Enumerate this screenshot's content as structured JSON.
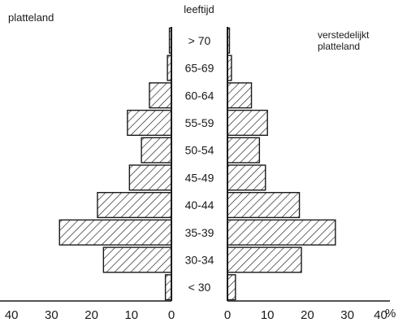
{
  "chart_data": {
    "type": "bar",
    "layout": "population-pyramid",
    "title": "",
    "left_panel_label": "platteland",
    "center_label": "leeftijd",
    "right_panel_label": [
      "verstedelijkt",
      "platteland"
    ],
    "unit_label": "%",
    "categories": [
      "> 70",
      "65-69",
      "60-64",
      "55-59",
      "50-54",
      "45-49",
      "40-44",
      "35-39",
      "30-34",
      "< 30"
    ],
    "series": [
      {
        "name": "platteland",
        "side": "left",
        "values": [
          0.5,
          1,
          5.5,
          11,
          7.5,
          10.5,
          18.5,
          28,
          17,
          1.5
        ]
      },
      {
        "name": "verstedelijkt platteland",
        "side": "right",
        "values": [
          0.5,
          1,
          6,
          10,
          8,
          9.5,
          18,
          27,
          18.5,
          2
        ]
      }
    ],
    "left_axis": {
      "ticks": [
        40,
        30,
        20,
        10,
        0
      ],
      "range": [
        0,
        40
      ]
    },
    "right_axis": {
      "ticks": [
        0,
        10,
        20,
        30,
        40
      ],
      "range": [
        0,
        40
      ]
    },
    "bar_fill": "hatched",
    "colors": {
      "ink": "#1a1a1a",
      "background": "#ffffff"
    }
  }
}
